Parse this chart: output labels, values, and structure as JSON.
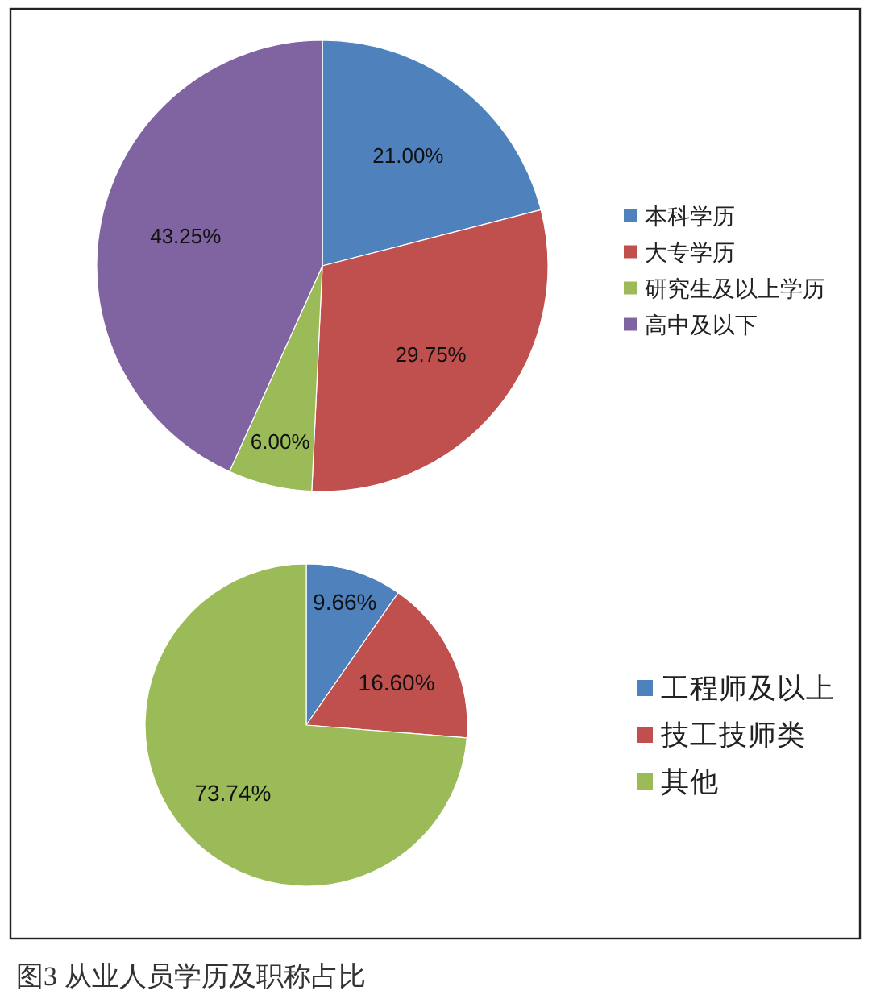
{
  "chart_data": [
    {
      "type": "pie",
      "categories": [
        "本科学历",
        "大专学历",
        "研究生及以上学历",
        "高中及以下"
      ],
      "values": [
        21,
        29.75,
        6,
        43.25
      ],
      "colors": [
        "#4f81bd",
        "#c0504d",
        "#9bbb59",
        "#8064a2"
      ],
      "value_labels": [
        "21.00%",
        "29.75%",
        "6.00%",
        "43.25%"
      ],
      "legend": "right"
    },
    {
      "type": "pie",
      "categories": [
        "工程师及以上",
        "技工技师类",
        "其他"
      ],
      "values": [
        9.66,
        16.6,
        73.74
      ],
      "colors": [
        "#4f81bd",
        "#c0504d",
        "#9bbb59"
      ],
      "value_labels": [
        "9.66%",
        "16.60%",
        "73.74%"
      ],
      "legend": "right",
      "annotations": [
        "图3 从业人员学历及职称占比"
      ]
    }
  ]
}
